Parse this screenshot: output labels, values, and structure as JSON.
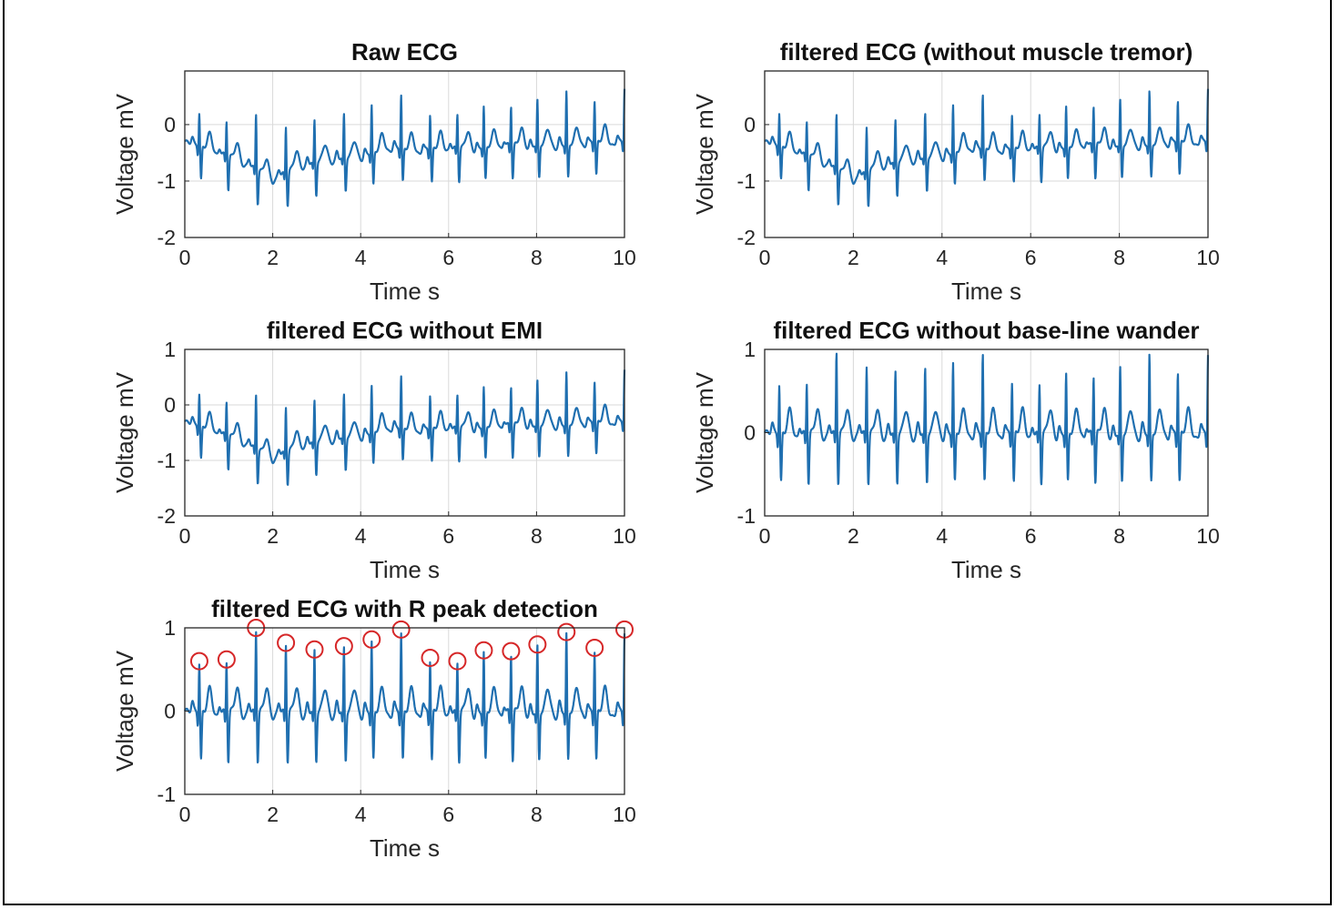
{
  "figure": {
    "trace_color": "#1f6fb0",
    "marker_color": "#d62728"
  },
  "chart_data": [
    {
      "type": "line",
      "title": "Raw ECG",
      "xlabel": "Time s",
      "ylabel": "Voltage mV",
      "xlim": [
        0,
        10
      ],
      "ylim": [
        -2,
        0.95
      ],
      "xticks": [
        0,
        2,
        4,
        6,
        8,
        10
      ],
      "yticks": [
        -2,
        -1,
        0
      ],
      "grid": true,
      "series": [
        {
          "r_peak_amps": [
            0.6,
            0.62,
            1.0,
            0.82,
            0.74,
            0.78,
            0.86,
            0.98,
            0.64,
            0.6,
            0.73,
            0.72,
            0.8,
            0.95,
            0.76,
            0.98
          ],
          "baseline": [
            -0.3,
            -0.45,
            -0.65,
            -0.95,
            -0.7,
            -0.6,
            -0.55,
            -0.4,
            -0.45,
            -0.4,
            -0.4,
            -0.35,
            -0.35,
            -0.35,
            -0.3,
            -0.3
          ]
        }
      ]
    },
    {
      "type": "line",
      "title": "filtered ECG (without muscle tremor)",
      "xlabel": "Time s",
      "ylabel": "Voltage mV",
      "xlim": [
        0,
        10
      ],
      "ylim": [
        -2,
        0.95
      ],
      "xticks": [
        0,
        2,
        4,
        6,
        8,
        10
      ],
      "yticks": [
        -2,
        -1,
        0
      ],
      "grid": true,
      "series": [
        {
          "r_peak_amps": [
            0.6,
            0.62,
            1.0,
            0.82,
            0.74,
            0.78,
            0.86,
            0.98,
            0.64,
            0.6,
            0.73,
            0.72,
            0.8,
            0.95,
            0.76,
            0.98
          ],
          "baseline": [
            -0.3,
            -0.45,
            -0.65,
            -0.95,
            -0.7,
            -0.6,
            -0.55,
            -0.4,
            -0.45,
            -0.4,
            -0.4,
            -0.35,
            -0.35,
            -0.35,
            -0.3,
            -0.3
          ]
        }
      ]
    },
    {
      "type": "line",
      "title": "filtered ECG without EMI",
      "xlabel": "Time s",
      "ylabel": "Voltage mV",
      "xlim": [
        0,
        10
      ],
      "ylim": [
        -2,
        1
      ],
      "xticks": [
        0,
        2,
        4,
        6,
        8,
        10
      ],
      "yticks": [
        -2,
        -1,
        0,
        1
      ],
      "grid": true,
      "series": [
        {
          "r_peak_amps": [
            0.6,
            0.62,
            1.0,
            0.82,
            0.74,
            0.78,
            0.86,
            0.98,
            0.64,
            0.6,
            0.73,
            0.72,
            0.8,
            0.95,
            0.76,
            0.98
          ],
          "baseline": [
            -0.3,
            -0.45,
            -0.65,
            -0.95,
            -0.7,
            -0.6,
            -0.55,
            -0.4,
            -0.45,
            -0.4,
            -0.4,
            -0.35,
            -0.35,
            -0.35,
            -0.3,
            -0.3
          ]
        }
      ]
    },
    {
      "type": "line",
      "title": "filtered ECG without base-line wander",
      "xlabel": "Time s",
      "ylabel": "Voltage mV",
      "xlim": [
        0,
        10
      ],
      "ylim": [
        -1,
        1
      ],
      "xticks": [
        0,
        2,
        4,
        6,
        8,
        10
      ],
      "yticks": [
        -1,
        0,
        1
      ],
      "grid": true,
      "series": [
        {
          "r_peak_amps": [
            0.6,
            0.62,
            1.0,
            0.82,
            0.74,
            0.78,
            0.86,
            0.98,
            0.64,
            0.6,
            0.73,
            0.72,
            0.8,
            0.95,
            0.76,
            0.98
          ],
          "baseline": [
            0,
            0,
            0,
            0,
            0,
            0,
            0,
            0,
            0,
            0,
            0,
            0,
            0,
            0,
            0,
            0
          ]
        }
      ]
    },
    {
      "type": "line",
      "title": "filtered ECG with R peak detection",
      "xlabel": "Time s",
      "ylabel": "Voltage mV",
      "xlim": [
        0,
        10
      ],
      "ylim": [
        -1,
        1
      ],
      "xticks": [
        0,
        2,
        4,
        6,
        8,
        10
      ],
      "yticks": [
        -1,
        0,
        1
      ],
      "grid": true,
      "series": [
        {
          "r_peak_amps": [
            0.6,
            0.62,
            1.0,
            0.82,
            0.74,
            0.78,
            0.86,
            0.98,
            0.64,
            0.6,
            0.73,
            0.72,
            0.8,
            0.95,
            0.76,
            0.98
          ],
          "baseline": [
            0,
            0,
            0,
            0,
            0,
            0,
            0,
            0,
            0,
            0,
            0,
            0,
            0,
            0,
            0,
            0
          ]
        }
      ],
      "r_peaks": {
        "t": [
          0.33,
          0.95,
          1.62,
          2.3,
          2.95,
          3.62,
          4.25,
          4.92,
          5.58,
          6.2,
          6.8,
          7.42,
          8.02,
          8.68,
          9.32,
          10.0
        ],
        "v": [
          0.6,
          0.62,
          1.0,
          0.82,
          0.74,
          0.78,
          0.86,
          0.98,
          0.64,
          0.6,
          0.73,
          0.72,
          0.8,
          0.95,
          0.76,
          0.98
        ]
      }
    }
  ]
}
